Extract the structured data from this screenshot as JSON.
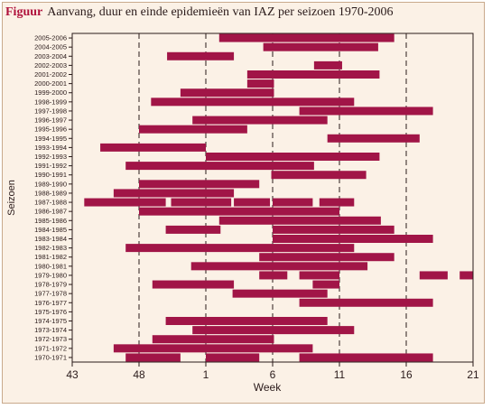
{
  "title": {
    "label": "Figuur",
    "text": "Aanvang, duur en einde epidemieën van IAZ per seizoen 1970-2006"
  },
  "colors": {
    "bar": "#a11547",
    "background": "#fbf1e6",
    "frame": "#c9a98c",
    "title_label": "#b0123c"
  },
  "chart_data": {
    "type": "bar",
    "orientation": "horizontal-ranges",
    "xlabel": "Week",
    "ylabel": "Seizoen",
    "x_axis_note": "continuous week index across the season; week 52 is followed by week 1",
    "xlim": [
      43,
      73
    ],
    "x_ticks": [
      {
        "pos": 43,
        "label": "43"
      },
      {
        "pos": 48,
        "label": "48"
      },
      {
        "pos": 53,
        "label": "1"
      },
      {
        "pos": 58,
        "label": "6"
      },
      {
        "pos": 63,
        "label": "11"
      },
      {
        "pos": 68,
        "label": "16"
      },
      {
        "pos": 73,
        "label": "21"
      }
    ],
    "dashed_gridlines_at": [
      48,
      53,
      58,
      63,
      68,
      73
    ],
    "seasons": [
      {
        "label": "2005-2006",
        "ranges": [
          [
            54.0,
            67.1
          ]
        ]
      },
      {
        "label": "2004-2005",
        "ranges": [
          [
            57.3,
            65.9
          ]
        ]
      },
      {
        "label": "2003-2004",
        "ranges": [
          [
            50.1,
            55.1
          ]
        ]
      },
      {
        "label": "2002-2003",
        "ranges": [
          [
            61.1,
            63.2
          ]
        ]
      },
      {
        "label": "2001-2002",
        "ranges": [
          [
            56.1,
            66.0
          ]
        ]
      },
      {
        "label": "2000-2001",
        "ranges": [
          [
            56.1,
            58.1
          ]
        ]
      },
      {
        "label": "1999-2000",
        "ranges": [
          [
            51.1,
            58.1
          ]
        ]
      },
      {
        "label": "1998-1999",
        "ranges": [
          [
            48.9,
            64.1
          ]
        ]
      },
      {
        "label": "1997-1998",
        "ranges": [
          [
            60.0,
            70.0
          ]
        ]
      },
      {
        "label": "1996-1997",
        "ranges": [
          [
            52.0,
            62.1
          ]
        ]
      },
      {
        "label": "1995-1996",
        "ranges": [
          [
            48.0,
            56.1
          ]
        ]
      },
      {
        "label": "1994-1995",
        "ranges": [
          [
            62.1,
            69.0
          ]
        ]
      },
      {
        "label": "1993-1994",
        "ranges": [
          [
            45.1,
            53.0
          ]
        ]
      },
      {
        "label": "1992-1993",
        "ranges": [
          [
            53.0,
            66.0
          ]
        ]
      },
      {
        "label": "1991-1992",
        "ranges": [
          [
            47.0,
            61.1
          ]
        ]
      },
      {
        "label": "1990-1991",
        "ranges": [
          [
            57.9,
            65.0
          ]
        ]
      },
      {
        "label": "1989-1990",
        "ranges": [
          [
            48.0,
            57.0
          ]
        ]
      },
      {
        "label": "1988-1989",
        "ranges": [
          [
            46.1,
            55.1
          ]
        ]
      },
      {
        "label": "1987-1988",
        "ranges": [
          [
            43.9,
            50.0
          ],
          [
            50.4,
            54.9
          ],
          [
            55.1,
            57.8
          ],
          [
            58.0,
            61.0
          ],
          [
            61.5,
            64.1
          ]
        ]
      },
      {
        "label": "1986-1987",
        "ranges": [
          [
            48.0,
            63.0
          ]
        ]
      },
      {
        "label": "1985-1986",
        "ranges": [
          [
            54.0,
            66.1
          ]
        ]
      },
      {
        "label": "1984-1985",
        "ranges": [
          [
            50.0,
            54.1
          ],
          [
            58.0,
            67.1
          ]
        ]
      },
      {
        "label": "1983-1984",
        "ranges": [
          [
            58.0,
            70.0
          ]
        ]
      },
      {
        "label": "1982-1983",
        "ranges": [
          [
            47.0,
            64.1
          ]
        ]
      },
      {
        "label": "1981-1982",
        "ranges": [
          [
            57.0,
            67.1
          ]
        ]
      },
      {
        "label": "1980-1981",
        "ranges": [
          [
            51.9,
            65.1
          ]
        ]
      },
      {
        "label": "1979-1980",
        "ranges": [
          [
            57.0,
            59.1
          ],
          [
            60.0,
            63.0
          ],
          [
            69.0,
            71.1
          ],
          [
            72.0,
            73.0
          ]
        ]
      },
      {
        "label": "1978-1979",
        "ranges": [
          [
            49.0,
            55.1
          ],
          [
            61.0,
            63.0
          ]
        ]
      },
      {
        "label": "1977-1978",
        "ranges": [
          [
            55.0,
            62.1
          ]
        ]
      },
      {
        "label": "1976-1977",
        "ranges": [
          [
            60.0,
            70.0
          ]
        ]
      },
      {
        "label": "1975-1976",
        "ranges": []
      },
      {
        "label": "1974-1975",
        "ranges": [
          [
            50.0,
            62.1
          ]
        ]
      },
      {
        "label": "1973-1974",
        "ranges": [
          [
            52.0,
            64.1
          ]
        ]
      },
      {
        "label": "1972-1973",
        "ranges": [
          [
            49.0,
            58.1
          ]
        ]
      },
      {
        "label": "1971-1972",
        "ranges": [
          [
            46.1,
            61.0
          ]
        ]
      },
      {
        "label": "1970-1971",
        "ranges": [
          [
            47.0,
            51.1
          ],
          [
            53.0,
            57.0
          ],
          [
            60.0,
            70.0
          ]
        ]
      }
    ]
  }
}
